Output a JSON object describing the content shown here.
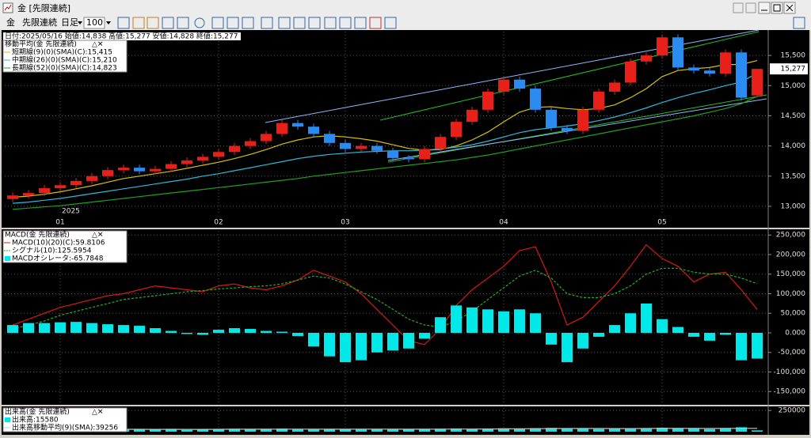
{
  "window": {
    "title": "金 [先限連続]"
  },
  "toolbar": [
    "金",
    "先限連続",
    "日足",
    "100"
  ],
  "chart_data": [
    {
      "type": "candlestick",
      "header": "日付:2025/05/16 始値:14,838 高値:15,277 安値:14,828 終値:15,277",
      "legend_title": "移動平均(金 先限連続)",
      "year_label": "2025",
      "categories": [
        null,
        null,
        null,
        "01",
        null,
        null,
        null,
        null,
        null,
        null,
        null,
        null,
        null,
        "02",
        null,
        null,
        null,
        null,
        null,
        null,
        null,
        "03",
        null,
        null,
        null,
        null,
        null,
        null,
        null,
        null,
        null,
        "04",
        null,
        null,
        null,
        null,
        null,
        null,
        null,
        null,
        null,
        "05",
        null,
        null,
        null,
        null,
        null,
        null
      ],
      "open": [
        13120,
        13180,
        13220,
        13300,
        13350,
        13420,
        13500,
        13600,
        13640,
        13580,
        13620,
        13700,
        13760,
        13820,
        13900,
        14000,
        14080,
        14200,
        14380,
        14320,
        14200,
        14050,
        13950,
        14000,
        13920,
        13800,
        13780,
        13950,
        14150,
        14400,
        14600,
        14900,
        15100,
        14950,
        14600,
        14300,
        14250,
        14600,
        14900,
        15050,
        15400,
        15500,
        15800,
        15300,
        15250,
        15200,
        15550,
        14838
      ],
      "high": [
        13230,
        13270,
        13350,
        13400,
        13470,
        13550,
        13650,
        13690,
        13690,
        13670,
        13750,
        13810,
        13870,
        13950,
        14050,
        14130,
        14250,
        14430,
        14430,
        14370,
        14250,
        14100,
        14050,
        14050,
        13970,
        13850,
        14000,
        14200,
        14450,
        14650,
        14950,
        15150,
        15150,
        15000,
        14650,
        14350,
        14650,
        14950,
        15100,
        15450,
        15550,
        15850,
        15850,
        15350,
        15300,
        15600,
        15600,
        15277
      ],
      "low": [
        13070,
        13130,
        13170,
        13250,
        13300,
        13370,
        13450,
        13550,
        13530,
        13530,
        13570,
        13650,
        13710,
        13770,
        13850,
        13950,
        14030,
        14150,
        14270,
        14150,
        14000,
        13900,
        13900,
        13870,
        13750,
        13730,
        13730,
        13900,
        14100,
        14350,
        14550,
        14850,
        14900,
        14550,
        14250,
        14200,
        14200,
        14550,
        14850,
        15000,
        15350,
        15450,
        15250,
        15200,
        15150,
        15150,
        14750,
        14828
      ],
      "close": [
        13180,
        13220,
        13300,
        13350,
        13420,
        13500,
        13600,
        13640,
        13580,
        13620,
        13700,
        13760,
        13820,
        13900,
        14000,
        14080,
        14200,
        14380,
        14320,
        14200,
        14050,
        13950,
        14000,
        13920,
        13800,
        13780,
        13950,
        14150,
        14400,
        14600,
        14900,
        15100,
        14950,
        14600,
        14300,
        14250,
        14600,
        14900,
        15050,
        15400,
        15500,
        15800,
        15300,
        15250,
        15200,
        15550,
        14800,
        15277
      ],
      "up_color": "#e8201a",
      "down_color": "#2a8cf0",
      "series": [
        {
          "name": "短期線(9)(0)(SMA)(C):15,415",
          "color": "#d8c200",
          "style": "line",
          "values": [
            13150,
            13170,
            13200,
            13240,
            13290,
            13340,
            13400,
            13460,
            13500,
            13540,
            13580,
            13630,
            13680,
            13730,
            13790,
            13860,
            13940,
            14030,
            14100,
            14150,
            14170,
            14150,
            14120,
            14080,
            14020,
            13960,
            13930,
            13940,
            14000,
            14100,
            14230,
            14400,
            14560,
            14640,
            14650,
            14620,
            14600,
            14620,
            14680,
            14800,
            14950,
            15150,
            15250,
            15280,
            15300,
            15350,
            15350,
            15415
          ]
        },
        {
          "name": "中期線(26)(0)(SMA)(C):15,210",
          "color": "#30b8d8",
          "style": "line",
          "values": [
            13050,
            13070,
            13100,
            13130,
            13170,
            13210,
            13250,
            13290,
            13330,
            13370,
            13410,
            13450,
            13500,
            13540,
            13590,
            13640,
            13690,
            13740,
            13790,
            13830,
            13860,
            13880,
            13900,
            13910,
            13920,
            13920,
            13930,
            13950,
            13980,
            14020,
            14080,
            14150,
            14220,
            14270,
            14300,
            14330,
            14370,
            14420,
            14480,
            14550,
            14630,
            14720,
            14800,
            14870,
            14930,
            15000,
            15060,
            15210
          ]
        },
        {
          "name": "長期線(52)(0)(SMA)(C):14,823",
          "color": "#20a020",
          "style": "line",
          "values": [
            12950,
            12970,
            12990,
            13010,
            13040,
            13070,
            13100,
            13130,
            13160,
            13190,
            13220,
            13250,
            13280,
            13310,
            13340,
            13370,
            13400,
            13430,
            13460,
            13500,
            13530,
            13560,
            13590,
            13620,
            13650,
            13680,
            13710,
            13740,
            13770,
            13810,
            13850,
            13900,
            13950,
            14000,
            14050,
            14100,
            14150,
            14200,
            14250,
            14300,
            14350,
            14400,
            14450,
            14500,
            14560,
            14620,
            14700,
            14823
          ]
        }
      ],
      "last_price": {
        "value": 15277,
        "label": "15,277"
      },
      "ylim": [
        12855,
        15895
      ],
      "yticks": [
        {
          "value": 13000,
          "label": "13,000"
        },
        {
          "value": 13500,
          "label": "13,500"
        },
        {
          "value": 14000,
          "label": "14,000"
        },
        {
          "value": 14500,
          "label": "14,500"
        },
        {
          "value": 15000,
          "label": "15,000"
        },
        {
          "value": 15500,
          "label": "15,500"
        }
      ],
      "grid": true
    },
    {
      "type": "line",
      "legend_title": "MACD(金 先限連続)",
      "series": [
        {
          "name": "MACD(10)(20)(C):59.8106",
          "color": "#d81818",
          "style": "line",
          "values": [
            20000,
            35000,
            50000,
            65000,
            75000,
            85000,
            95000,
            100000,
            110000,
            120000,
            115000,
            110000,
            105000,
            120000,
            125000,
            115000,
            110000,
            120000,
            135000,
            160000,
            145000,
            130000,
            100000,
            60000,
            20000,
            -20000,
            -30000,
            10000,
            70000,
            110000,
            140000,
            170000,
            210000,
            220000,
            130000,
            20000,
            40000,
            80000,
            120000,
            170000,
            225000,
            190000,
            170000,
            130000,
            150000,
            155000,
            110000,
            59811
          ]
        },
        {
          "name": "シグナル(10):125.5954",
          "color": "#22b022",
          "style": "dashed",
          "values": [
            10000,
            20000,
            30000,
            45000,
            55000,
            65000,
            75000,
            85000,
            90000,
            95000,
            100000,
            105000,
            108000,
            112000,
            115000,
            118000,
            120000,
            125000,
            135000,
            145000,
            140000,
            125000,
            105000,
            85000,
            60000,
            35000,
            20000,
            15000,
            30000,
            55000,
            85000,
            115000,
            145000,
            160000,
            140000,
            100000,
            90000,
            90000,
            100000,
            120000,
            150000,
            165000,
            165000,
            155000,
            150000,
            150000,
            140000,
            125595
          ]
        },
        {
          "name": "MACDオシレータ:-65.7848",
          "color": "#00e8e8",
          "style": "bar",
          "values": [
            20000,
            25000,
            25000,
            27000,
            28000,
            25000,
            22000,
            20000,
            18000,
            12000,
            5000,
            -3000,
            -5000,
            8000,
            12000,
            10000,
            5000,
            3000,
            -8000,
            -35000,
            -60000,
            -75000,
            -70000,
            -50000,
            -45000,
            -40000,
            -15000,
            40000,
            70000,
            65000,
            60000,
            55000,
            60000,
            50000,
            -30000,
            -75000,
            -40000,
            -10000,
            20000,
            50000,
            75000,
            35000,
            15000,
            -10000,
            -20000,
            -5000,
            -70000,
            -65785
          ]
        }
      ],
      "ylim": [
        -179800,
        260600
      ],
      "yticks": [
        {
          "value": -150000,
          "label": "-150,000"
        },
        {
          "value": -100000,
          "label": "-100,000"
        },
        {
          "value": -50000,
          "label": "-50,000"
        },
        {
          "value": 0,
          "label": "0.000"
        },
        {
          "value": 50000,
          "label": "50,000"
        },
        {
          "value": 100000,
          "label": "100,000"
        },
        {
          "value": 150000,
          "label": "150,000"
        },
        {
          "value": 200000,
          "label": "200,000"
        },
        {
          "value": 250000,
          "label": "250,000"
        }
      ],
      "grid": true
    },
    {
      "type": "bar",
      "legend_title": "出来高(金 先限連続)",
      "series": [
        {
          "name": "出来高:15580",
          "color": "#00e8e8",
          "style": "bar",
          "values": [
            25000,
            30000,
            28000,
            35000,
            22000,
            26000,
            31000,
            24000,
            27000,
            29000,
            33000,
            21000,
            26000,
            30000,
            34000,
            28000,
            32000,
            36000,
            30000,
            27000,
            25000,
            29000,
            31000,
            33000,
            28000,
            26000,
            30000,
            35000,
            38000,
            33000,
            36000,
            40000,
            37000,
            42000,
            45000,
            39000,
            35000,
            31000,
            34000,
            38000,
            41000,
            47000,
            36000,
            33000,
            30000,
            40000,
            52000,
            15580
          ]
        },
        {
          "name": "出来高移動平均(9)(SMA):39256",
          "color": "#c8c8c8",
          "style": "line",
          "values": [
            28000,
            28000,
            28500,
            29000,
            28500,
            28000,
            28500,
            28000,
            28000,
            27500,
            28000,
            27500,
            27500,
            28000,
            28500,
            28500,
            29000,
            29500,
            30000,
            29500,
            29000,
            29000,
            29500,
            30000,
            29500,
            29000,
            29000,
            29500,
            30500,
            31000,
            32000,
            33000,
            34000,
            35000,
            36000,
            37000,
            37500,
            37000,
            36500,
            36500,
            37000,
            38000,
            38500,
            38000,
            37500,
            38000,
            39500,
            39256
          ]
        }
      ],
      "ylim": [
        0,
        280000
      ],
      "yticks": [
        250000
      ],
      "grid": true
    }
  ]
}
